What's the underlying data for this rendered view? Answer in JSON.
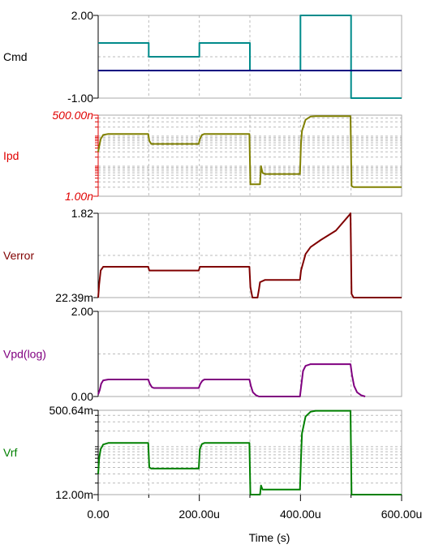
{
  "chart_data": {
    "type": "line",
    "xlabel": "Time (s)",
    "x_ticks": [
      "0.00",
      "200.00u",
      "400.00u",
      "600.00u"
    ],
    "xlim": [
      0,
      600
    ],
    "x_unit": "u",
    "grid": true,
    "panels": [
      {
        "name": "Cmd",
        "label_color": "#000000",
        "tick_color": "#000000",
        "ticks": [
          "2.00",
          "-1.00"
        ],
        "ylim": [
          -1.0,
          2.0
        ],
        "scale": "linear",
        "minor_lines": false,
        "series": [
          {
            "color": "#008b8b",
            "x": [
              0,
              100,
              100,
              200,
              200,
              300,
              300,
              400,
              400,
              500,
              500,
              600
            ],
            "y": [
              1.0,
              1.0,
              0.5,
              0.5,
              1.0,
              1.0,
              0.0,
              0.0,
              2.0,
              2.0,
              -1.0,
              -1.0
            ]
          },
          {
            "color": "#000080",
            "x": [
              0,
              600
            ],
            "y": [
              0.0,
              0.0
            ]
          }
        ]
      },
      {
        "name": "Ipd",
        "label_color": "#e00000",
        "tick_color": "#e00000",
        "ticks": [
          "500.00n",
          "1.00n"
        ],
        "ylim": [
          1.0,
          500.0
        ],
        "scale": "log",
        "minor_lines": true,
        "series": [
          {
            "color": "#808000",
            "x": [
              0,
              2,
              5,
              10,
              20,
              50,
              99,
              101,
              105,
              150,
              199,
              201,
              205,
              210,
              250,
              299,
              301,
              305,
              320,
              322,
              325,
              330,
              340,
              350,
              360,
              399,
              401,
              403,
              410,
              420,
              430,
              499,
              501,
              505,
              550,
              600
            ],
            "y": [
              30,
              45,
              80,
              110,
              118,
              118,
              118,
              70,
              55,
              55,
              55,
              80,
              110,
              118,
              118,
              118,
              2.5,
              2.5,
              2.5,
              10,
              6,
              5.5,
              5.5,
              5.5,
              5.5,
              5.5,
              60,
              150,
              350,
              450,
              460,
              460,
              2.2,
              2.0,
              2.0,
              2.0
            ]
          }
        ]
      },
      {
        "name": "Verror",
        "label_color": "#800000",
        "tick_color": "#000000",
        "ticks": [
          "1.82",
          "22.39m"
        ],
        "ylim": [
          0.02239,
          1.82
        ],
        "scale": "linear",
        "minor_lines": false,
        "series": [
          {
            "color": "#800000",
            "x": [
              0,
              2,
              5,
              10,
              99,
              101,
              105,
              199,
              201,
              205,
              299,
              301,
              305,
              310,
              315,
              318,
              320,
              330,
              399,
              401,
              410,
              420,
              440,
              470,
              498,
              499,
              501,
              505,
              600
            ],
            "y": [
              0.02239,
              0.3,
              0.6,
              0.68,
              0.68,
              0.6,
              0.6,
              0.6,
              0.68,
              0.68,
              0.68,
              0.25,
              0.02239,
              0.02239,
              0.02239,
              0.2,
              0.35,
              0.4,
              0.4,
              0.6,
              0.95,
              1.1,
              1.25,
              1.45,
              1.8,
              1.82,
              0.1,
              0.02239,
              0.02239
            ]
          }
        ]
      },
      {
        "name": "Vpd(log)",
        "label_color": "#800080",
        "tick_color": "#000000",
        "ticks": [
          "2.00",
          "0.00"
        ],
        "ylim": [
          0.0,
          2.0
        ],
        "scale": "linear",
        "minor_lines": false,
        "series": [
          {
            "color": "#800080",
            "x": [
              0,
              3,
              6,
              10,
              20,
              99,
              102,
              106,
              110,
              199,
              202,
              206,
              210,
              299,
              302,
              306,
              312,
              318,
              325,
              399,
              402,
              405,
              410,
              420,
              499,
              502,
              506,
              512,
              520,
              528
            ],
            "y": [
              0.05,
              0.15,
              0.3,
              0.38,
              0.4,
              0.4,
              0.3,
              0.22,
              0.2,
              0.2,
              0.3,
              0.37,
              0.4,
              0.4,
              0.25,
              0.1,
              0.03,
              0.0,
              0.0,
              0.0,
              0.3,
              0.6,
              0.72,
              0.76,
              0.76,
              0.5,
              0.25,
              0.1,
              0.03,
              0.0
            ]
          }
        ]
      },
      {
        "name": "Vrf",
        "label_color": "#008000",
        "tick_color": "#000000",
        "ticks": [
          "500.64m",
          "12.00m"
        ],
        "ylim": [
          12.0,
          500.64
        ],
        "scale": "log",
        "minor_lines": true,
        "series": [
          {
            "color": "#008000",
            "x": [
              0,
              2,
              5,
              10,
              20,
              99,
              101,
              105,
              199,
              201,
              205,
              210,
              299,
              301,
              320,
              322,
              325,
              330,
              399,
              401,
              403,
              410,
              420,
              430,
              499,
              501,
              505,
              600
            ],
            "y": [
              30,
              60,
              90,
              110,
              118,
              118,
              40,
              38,
              38,
              90,
              112,
              118,
              118,
              12,
              12,
              18,
              15,
              15,
              15,
              60,
              180,
              380,
              470,
              490,
              490,
              12,
              12,
              12
            ]
          }
        ]
      }
    ]
  }
}
